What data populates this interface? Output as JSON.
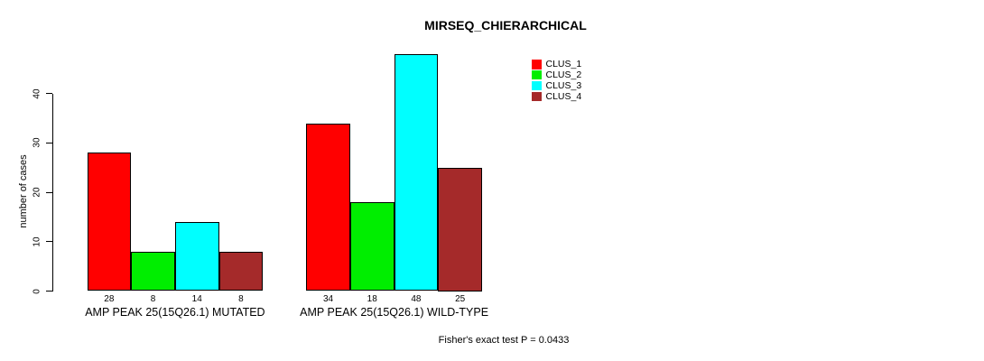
{
  "title": "MIRSEQ_CHIERARCHICAL",
  "footer": "Fisher's exact test P = 0.0433",
  "chart_data": {
    "type": "bar",
    "title": "MIRSEQ_CHIERARCHICAL",
    "xlabel": "",
    "ylabel": "number of cases",
    "ylim": [
      0,
      48
    ],
    "yticks": [
      0,
      10,
      20,
      30,
      40
    ],
    "grid": false,
    "legend_position": "top-right",
    "categories": [
      "AMP PEAK 25(15Q26.1) MUTATED",
      "AMP PEAK 25(15Q26.1) WILD-TYPE"
    ],
    "series": [
      {
        "name": "CLUS_1",
        "color": "#ff0000",
        "values": [
          28,
          34
        ]
      },
      {
        "name": "CLUS_2",
        "color": "#00ee00",
        "values": [
          8,
          18
        ]
      },
      {
        "name": "CLUS_3",
        "color": "#00ffff",
        "values": [
          14,
          48
        ]
      },
      {
        "name": "CLUS_4",
        "color": "#a52a2a",
        "values": [
          8,
          25
        ]
      }
    ],
    "bar_value_labels": [
      [
        28,
        8,
        14,
        8
      ],
      [
        34,
        18,
        48,
        25
      ]
    ],
    "annotation": "Fisher's exact test P = 0.0433"
  }
}
